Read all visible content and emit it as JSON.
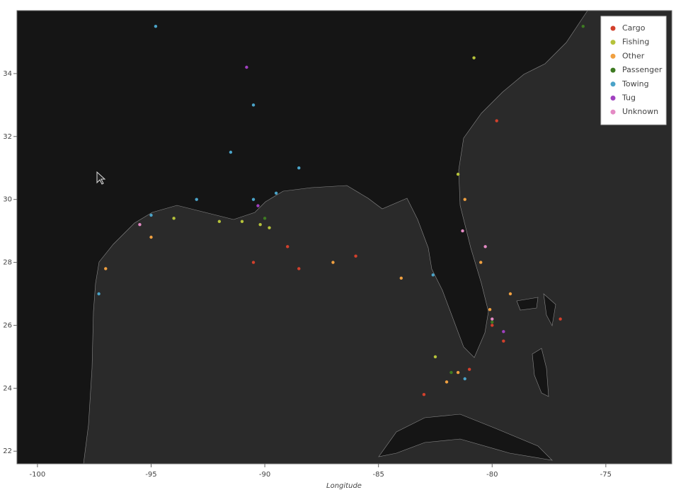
{
  "chart_data": {
    "type": "scatter",
    "x_label": "Longitude",
    "xlim": [
      -100.9,
      -72.1
    ],
    "ylim": [
      21.6,
      36.0
    ],
    "xticks": [
      -100,
      -95,
      -90,
      -85,
      -80,
      -75
    ],
    "yticks": [
      22,
      24,
      26,
      28,
      30,
      32,
      34
    ],
    "legend": "upper right",
    "series": [
      {
        "name": "Cargo",
        "color": "#d2402c",
        "x": [
          -89,
          -88.5,
          -90.5,
          -80,
          -79.5,
          -81,
          -83,
          -86,
          -79.8,
          -77
        ],
        "values": [
          28.5,
          27.8,
          28,
          26,
          25.5,
          24.6,
          23.8,
          28.2,
          32.5,
          26.2
        ]
      },
      {
        "name": "Fishing",
        "color": "#b5c23a",
        "x": [
          -90.2,
          -89.8,
          -91,
          -94,
          -80.8,
          -81.5,
          -92,
          -82.5
        ],
        "values": [
          29.2,
          29.1,
          29.3,
          29.4,
          34.5,
          30.8,
          29.3,
          25
        ]
      },
      {
        "name": "Other",
        "color": "#f0a040",
        "x": [
          -81.2,
          -80.5,
          -80.1,
          -81.5,
          -82,
          -95,
          -97,
          -87,
          -84,
          -79.2
        ],
        "values": [
          30,
          28,
          26.5,
          24.5,
          24.2,
          28.8,
          27.8,
          28,
          27.5,
          27
        ]
      },
      {
        "name": "Passenger",
        "color": "#3e7a22",
        "x": [
          -80,
          -81.8,
          -90,
          -76
        ],
        "values": [
          26.1,
          24.5,
          29.4,
          35.5
        ]
      },
      {
        "name": "Towing",
        "color": "#4aa3c8",
        "x": [
          -90.5,
          -91.5,
          -90.5,
          -95,
          -97.3,
          -93,
          -89.5,
          -88.5,
          -82.6,
          -81.2,
          -94.8
        ],
        "values": [
          30,
          31.5,
          33,
          29.5,
          27,
          30,
          30.2,
          31,
          27.6,
          24.3,
          35.5
        ]
      },
      {
        "name": "Tug",
        "color": "#a040c0",
        "x": [
          -90.8,
          -90.3,
          -79.5
        ],
        "values": [
          34.2,
          29.8,
          25.8
        ]
      },
      {
        "name": "Unknown",
        "color": "#e48ac4",
        "x": [
          -80,
          -81.3,
          -95.5,
          -80.3
        ],
        "values": [
          26.2,
          29,
          29.2,
          28.5
        ]
      }
    ]
  }
}
